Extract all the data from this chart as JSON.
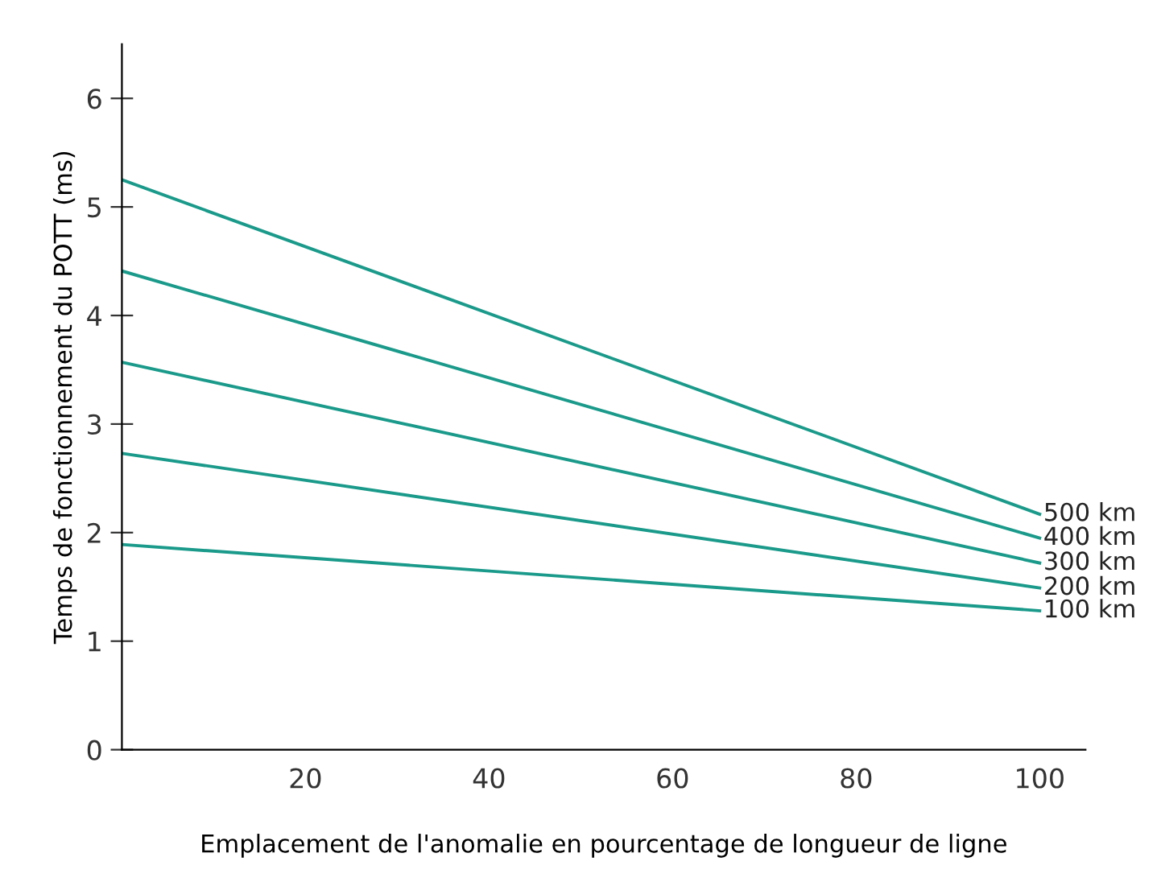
{
  "chart_data": {
    "type": "line",
    "xlabel": "Emplacement de l'anomalie en pourcentage de longueur de ligne",
    "ylabel": "Temps de fonctionnement du POTT (ms)",
    "x": [
      0,
      100
    ],
    "series": [
      {
        "name": "500 km",
        "color": "#1a9a8a",
        "values": [
          5.25,
          2.17
        ]
      },
      {
        "name": "400 km",
        "color": "#1a9a8a",
        "values": [
          4.41,
          1.95
        ]
      },
      {
        "name": "300 km",
        "color": "#1a9a8a",
        "values": [
          3.57,
          1.72
        ]
      },
      {
        "name": "200 km",
        "color": "#1a9a8a",
        "values": [
          2.73,
          1.49
        ]
      },
      {
        "name": "100 km",
        "color": "#1a9a8a",
        "values": [
          1.89,
          1.28
        ]
      }
    ],
    "xlim": [
      0,
      105
    ],
    "xticks": [
      20,
      40,
      60,
      80,
      100
    ],
    "ylim": [
      0,
      6.5
    ],
    "yticks": [
      0,
      1,
      2,
      3,
      4,
      5,
      6
    ],
    "grid": false,
    "legend": false,
    "marker": "none",
    "line_style": "solid"
  }
}
